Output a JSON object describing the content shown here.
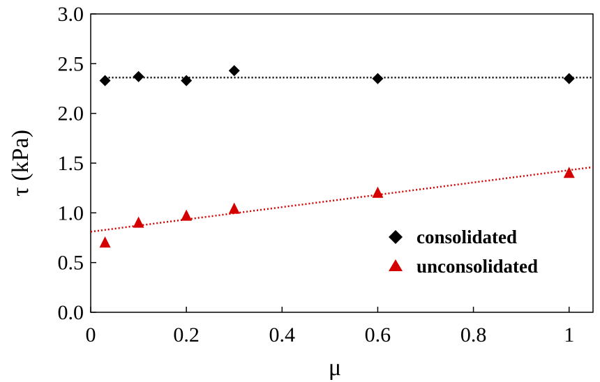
{
  "chart_data": {
    "type": "scatter",
    "title": "",
    "xlabel": "μ",
    "ylabel": "τ (kPa)",
    "xlim": [
      0,
      1.05
    ],
    "ylim": [
      0,
      3.0
    ],
    "xticks": [
      0,
      0.2,
      0.4,
      0.6,
      0.8,
      1
    ],
    "xtick_labels": [
      "0",
      "0.2",
      "0.4",
      "0.6",
      "0.8",
      "1"
    ],
    "yticks": [
      0,
      0.5,
      1.0,
      1.5,
      2.0,
      2.5,
      3.0
    ],
    "ytick_labels": [
      "0.0",
      "0.5",
      "1.0",
      "1.5",
      "2.0",
      "2.5",
      "3.0"
    ],
    "grid": false,
    "legend_position": "lower-right",
    "series": [
      {
        "name": "consolidated",
        "marker": "diamond",
        "color": "#000000",
        "x": [
          0.03,
          0.1,
          0.2,
          0.3,
          0.6,
          1.0
        ],
        "y": [
          2.33,
          2.37,
          2.33,
          2.43,
          2.35,
          2.35
        ],
        "trendline": {
          "style": "dotted",
          "x": [
            0.03,
            1.05
          ],
          "y": [
            2.36,
            2.36
          ]
        }
      },
      {
        "name": "unconsolidated",
        "marker": "triangle",
        "color": "#d40000",
        "x": [
          0.03,
          0.1,
          0.2,
          0.3,
          0.6,
          1.0
        ],
        "y": [
          0.7,
          0.9,
          0.97,
          1.04,
          1.2,
          1.4
        ],
        "trendline": {
          "style": "dotted",
          "x": [
            0.0,
            1.05
          ],
          "y": [
            0.81,
            1.46
          ]
        }
      }
    ]
  }
}
